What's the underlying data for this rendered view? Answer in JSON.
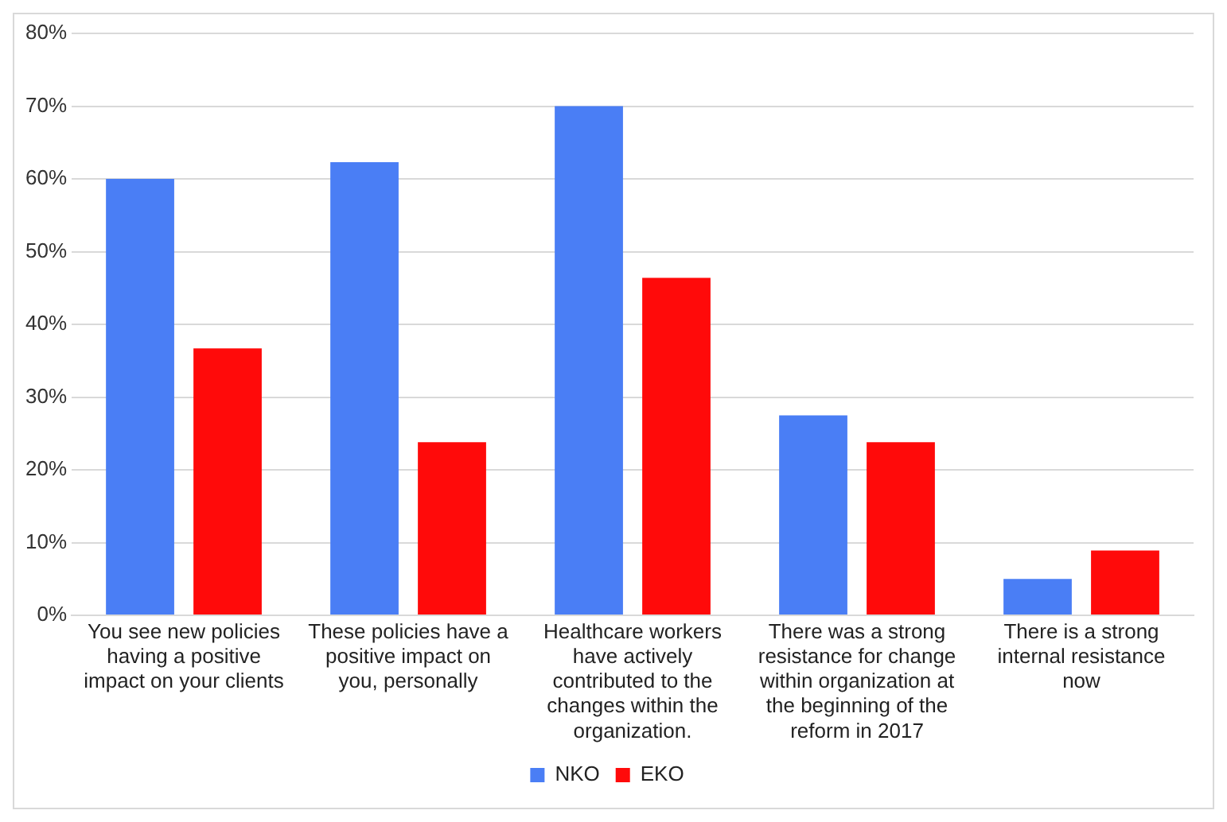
{
  "chart_data": {
    "type": "bar",
    "categories": [
      "You see new policies having a positive impact on your clients",
      "These policies have a positive impact on you, personally",
      "Healthcare workers have actively contributed to the changes within the organization.",
      "There was a strong resistance for change within organization at the beginning of the reform in 2017",
      "There is a strong internal resistance now"
    ],
    "series": [
      {
        "name": "NKO",
        "color": "#4a7ef5",
        "values": [
          60,
          62.3,
          70,
          27.5,
          5
        ]
      },
      {
        "name": "EKO",
        "color": "#ff0a0a",
        "values": [
          36.7,
          23.8,
          46.4,
          23.8,
          8.9
        ]
      }
    ],
    "ylim": [
      0,
      80
    ],
    "yticks": [
      {
        "value": 0,
        "label": "0%"
      },
      {
        "value": 10,
        "label": "10%"
      },
      {
        "value": 20,
        "label": "20%"
      },
      {
        "value": 30,
        "label": "30%"
      },
      {
        "value": 40,
        "label": "40%"
      },
      {
        "value": 50,
        "label": "50%"
      },
      {
        "value": 60,
        "label": "60%"
      },
      {
        "value": 70,
        "label": "70%"
      },
      {
        "value": 80,
        "label": "80%"
      }
    ],
    "grid": "y",
    "legend": "bottom"
  }
}
